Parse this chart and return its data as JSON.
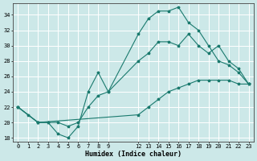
{
  "xlabel": "Humidex (Indice chaleur)",
  "bg_color": "#cce8e8",
  "line_color": "#1a7a6e",
  "grid_color": "#ffffff",
  "xlim": [
    -0.5,
    23.5
  ],
  "ylim": [
    17.5,
    35.5
  ],
  "yticks": [
    18,
    20,
    22,
    24,
    26,
    28,
    30,
    32,
    34
  ],
  "xticks": [
    0,
    1,
    2,
    3,
    4,
    5,
    6,
    7,
    8,
    9,
    12,
    13,
    14,
    15,
    16,
    17,
    18,
    19,
    20,
    21,
    22,
    23
  ],
  "line1_x": [
    0,
    1,
    2,
    3,
    4,
    5,
    6,
    7,
    8,
    9,
    12,
    13,
    14,
    15,
    16,
    17,
    18,
    19,
    20,
    21,
    22,
    23
  ],
  "line1_y": [
    22,
    21,
    20,
    20,
    18.5,
    18,
    19.5,
    24,
    26.5,
    24,
    31.5,
    33.5,
    34.5,
    34.5,
    35,
    33,
    32,
    30,
    28,
    27.5,
    26.5,
    25
  ],
  "line2_x": [
    0,
    2,
    3,
    4,
    5,
    6,
    7,
    8,
    9,
    12,
    13,
    14,
    15,
    16,
    17,
    18,
    19,
    20,
    21,
    22,
    23
  ],
  "line2_y": [
    22,
    20,
    20,
    20,
    19.5,
    20,
    22,
    23.5,
    24,
    28,
    29,
    30.5,
    30.5,
    30,
    31.5,
    30,
    29,
    30,
    28,
    27,
    25
  ],
  "line3_x": [
    0,
    2,
    12,
    13,
    14,
    15,
    16,
    17,
    18,
    19,
    20,
    21,
    22,
    23
  ],
  "line3_y": [
    22,
    20,
    21,
    22,
    23,
    24,
    24.5,
    25,
    25.5,
    25.5,
    25.5,
    25.5,
    25,
    25
  ]
}
